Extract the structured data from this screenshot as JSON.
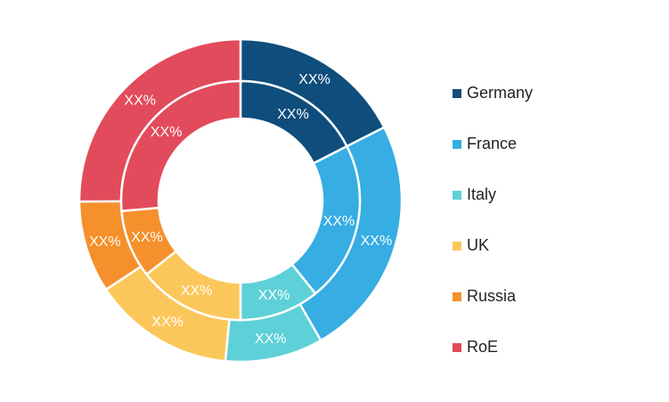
{
  "chart_data": {
    "type": "pie",
    "subtype": "double-donut",
    "categories": [
      "Germany",
      "France",
      "Italy",
      "UK",
      "Russia",
      "RoE"
    ],
    "colors": [
      "#0e4d7c",
      "#36ade3",
      "#5ed0d8",
      "#fcc75a",
      "#f5902c",
      "#e24b5b"
    ],
    "series": [
      {
        "ring": "outer",
        "values": [
          17.5,
          24.2,
          9.8,
          14.2,
          9.2,
          25.1
        ],
        "labels": [
          "XX%",
          "XX%",
          "XX%",
          "XX%",
          "XX%",
          "XX%"
        ]
      },
      {
        "ring": "inner",
        "values": [
          17.5,
          21.7,
          10.8,
          14.4,
          9.2,
          26.4
        ],
        "labels": [
          "XX%",
          "XX%",
          "XX%",
          "XX%",
          "XX%",
          "XX%"
        ]
      }
    ],
    "legend_position": "right"
  }
}
